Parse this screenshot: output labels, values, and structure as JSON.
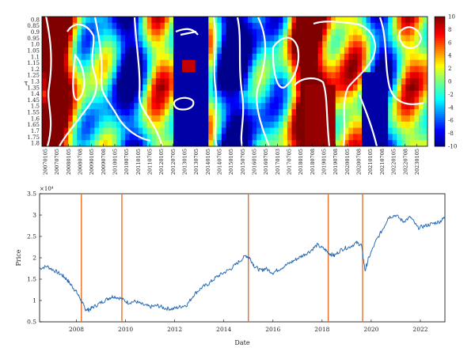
{
  "chart_data": [
    {
      "type": "heatmap",
      "ylabel": "τ",
      "y_ticks": [
        "0.8",
        "0.85",
        "0.9",
        "0.95",
        "1.0",
        "1.05",
        "1.1",
        "1.15",
        "1.2",
        "1.25",
        "1.3",
        "1.35",
        "1.4",
        "1.45",
        "1.5",
        "1.55",
        "1.6",
        "1.65",
        "1.7",
        "1.75",
        "1.8"
      ],
      "x_ticks": [
        "20070105",
        "20070705",
        "20080105",
        "20080708",
        "20090105",
        "20090708",
        "20100105",
        "20100705",
        "20110105",
        "20110705",
        "20120105",
        "20120705",
        "20130105",
        "20130705",
        "20140105",
        "20140705",
        "20150105",
        "20150705",
        "20160105",
        "20160705",
        "20170103",
        "20170705",
        "20180105",
        "20180708",
        "20190105",
        "20190708",
        "20200105",
        "20200708",
        "20210105",
        "20210708",
        "20220105",
        "20220708",
        "20230105"
      ],
      "colorbar": {
        "ticks": [
          10,
          8,
          6,
          4,
          2,
          0,
          -2,
          -4,
          -6,
          -8,
          -10
        ],
        "range": [
          -10,
          10
        ]
      },
      "grid": false
    },
    {
      "type": "line",
      "ylabel": "Price",
      "xlabel": "Date",
      "y_exponent_label": "×10⁴",
      "y_ticks": [
        "3.5",
        "3",
        "2.5",
        "2",
        "1.5",
        "1",
        "0.5"
      ],
      "x_ticks": [
        "2008",
        "2010",
        "2012",
        "2014",
        "2016",
        "2018",
        "2020",
        "2022"
      ],
      "xlim": [
        2007.0,
        2023.5
      ],
      "ylim": [
        0.5,
        3.5
      ],
      "series_color": "#2b6cb3",
      "vline_color": "#e8702a",
      "vlines": [
        2008.7,
        2010.35,
        2015.5,
        2018.75,
        2020.15
      ],
      "series": [
        {
          "x": [
            2007.0,
            2007.3,
            2007.6,
            2007.9,
            2008.1,
            2008.3,
            2008.5,
            2008.7,
            2008.85,
            2009.0,
            2009.2,
            2009.5,
            2009.8,
            2010.0,
            2010.3,
            2010.6,
            2010.9,
            2011.2,
            2011.5,
            2011.8,
            2012.1,
            2012.4,
            2012.7,
            2013.0,
            2013.3,
            2013.6,
            2013.9,
            2014.2,
            2014.5,
            2014.8,
            2015.1,
            2015.4,
            2015.55,
            2015.75,
            2016.0,
            2016.2,
            2016.5,
            2016.8,
            2017.1,
            2017.4,
            2017.7,
            2018.0,
            2018.3,
            2018.6,
            2018.8,
            2019.0,
            2019.3,
            2019.6,
            2019.9,
            2020.1,
            2020.25,
            2020.4,
            2020.7,
            2021.0,
            2021.2,
            2021.5,
            2021.8,
            2022.1,
            2022.4,
            2022.7,
            2023.0,
            2023.3,
            2023.5
          ],
          "y": [
            1.75,
            1.8,
            1.7,
            1.6,
            1.5,
            1.35,
            1.2,
            1.0,
            0.8,
            0.78,
            0.85,
            0.95,
            1.05,
            1.1,
            1.05,
            0.95,
            0.98,
            0.9,
            0.85,
            0.88,
            0.82,
            0.8,
            0.85,
            0.9,
            1.15,
            1.3,
            1.4,
            1.55,
            1.65,
            1.75,
            1.9,
            2.05,
            2.0,
            1.8,
            1.7,
            1.75,
            1.65,
            1.75,
            1.85,
            1.95,
            2.05,
            2.15,
            2.3,
            2.2,
            2.1,
            2.05,
            2.2,
            2.25,
            2.35,
            2.3,
            1.7,
            2.0,
            2.4,
            2.7,
            2.95,
            3.0,
            2.85,
            2.95,
            2.7,
            2.75,
            2.8,
            2.85,
            2.95
          ]
        }
      ]
    }
  ]
}
